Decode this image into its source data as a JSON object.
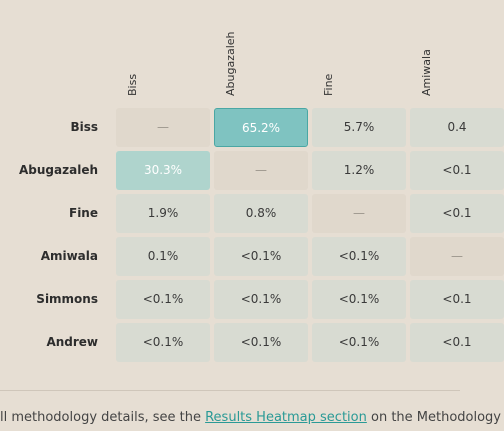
{
  "table": {
    "columns": [
      "Biss",
      "Abugazaleh",
      "Fine",
      "Amiwala"
    ],
    "rows": [
      {
        "label": "Biss",
        "cells": [
          "—",
          "65.2%",
          "5.7%",
          "0.4"
        ]
      },
      {
        "label": "Abugazaleh",
        "cells": [
          "30.3%",
          "—",
          "1.2%",
          "<0.1"
        ]
      },
      {
        "label": "Fine",
        "cells": [
          "1.9%",
          "0.8%",
          "—",
          "<0.1"
        ]
      },
      {
        "label": "Amiwala",
        "cells": [
          "0.1%",
          "<0.1%",
          "<0.1%",
          "—"
        ]
      },
      {
        "label": "Simmons",
        "cells": [
          "<0.1%",
          "<0.1%",
          "<0.1%",
          "<0.1"
        ]
      },
      {
        "label": "Andrew",
        "cells": [
          "<0.1%",
          "<0.1%",
          "<0.1%",
          "<0.1"
        ]
      }
    ]
  },
  "footer": {
    "before": "ll methodology details, see the ",
    "link": "Results Heatmap section",
    "after": " on the Methodology"
  }
}
